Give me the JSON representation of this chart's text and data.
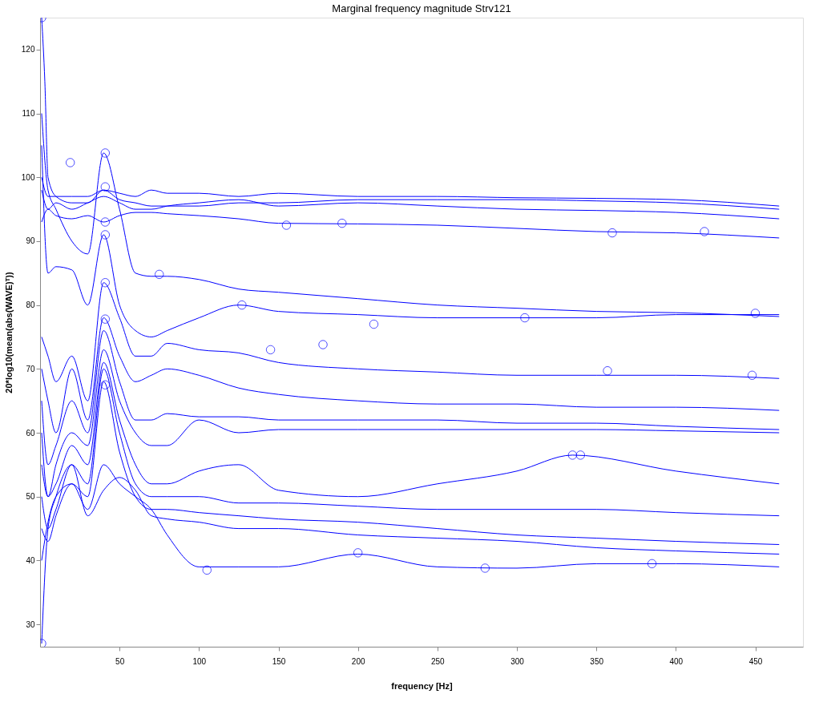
{
  "chart_data": {
    "type": "line",
    "title": "Marginal frequency magnitude Strv121",
    "xlabel": "frequency [Hz]",
    "ylabel": "20*log10(mean(abs(WAVE)ᵀ))",
    "xlim": [
      0,
      480
    ],
    "ylim": [
      26.5,
      125
    ],
    "xticks": [
      50,
      100,
      150,
      200,
      250,
      300,
      350,
      400,
      450
    ],
    "yticks": [
      30,
      40,
      50,
      60,
      70,
      80,
      90,
      100,
      110,
      120
    ],
    "grid": false,
    "legend": false,
    "line_style": "solid",
    "series": [
      {
        "color": "#0000ff",
        "x": [
          1,
          5,
          10,
          20,
          30,
          40,
          50,
          60,
          70,
          80,
          100,
          125,
          150,
          200,
          250,
          300,
          350,
          400,
          465
        ],
        "values": [
          100,
          97,
          97,
          97,
          97,
          98,
          97.5,
          97,
          98,
          97.5,
          97.5,
          97,
          97.5,
          97,
          97,
          96.8,
          96.7,
          96.5,
          95.5
        ]
      },
      {
        "color": "#0000ff",
        "x": [
          1,
          5,
          10,
          20,
          30,
          40,
          50,
          60,
          70,
          80,
          100,
          125,
          150,
          200,
          250,
          300,
          350,
          400,
          465
        ],
        "values": [
          98,
          95,
          96,
          95,
          96,
          97,
          96,
          95,
          95,
          95.5,
          96,
          96.5,
          95.5,
          96,
          95.5,
          95,
          94.8,
          94.5,
          93.5
        ]
      },
      {
        "color": "#0000ff",
        "x": [
          1,
          5,
          10,
          20,
          30,
          40,
          50,
          60,
          70,
          80,
          100,
          125,
          150,
          200,
          250,
          300,
          350,
          400,
          465
        ],
        "values": [
          93,
          95,
          94,
          93.5,
          94,
          93,
          94,
          94.5,
          94.5,
          94.3,
          94,
          93.5,
          92.8,
          92.7,
          92.5,
          92,
          91.5,
          91.3,
          90.5
        ]
      },
      {
        "color": "#0000ff",
        "x": [
          1,
          5,
          10,
          20,
          30,
          40,
          50,
          60,
          70,
          80,
          100,
          125,
          150,
          200,
          250,
          300,
          350,
          400,
          465
        ],
        "values": [
          110,
          98,
          95,
          90,
          88,
          103.8,
          95,
          85,
          84.5,
          84.5,
          84,
          82.5,
          82,
          81,
          80,
          79.5,
          79,
          78.8,
          78.2
        ]
      },
      {
        "color": "#0000ff",
        "x": [
          1,
          5,
          10,
          20,
          30,
          40,
          50,
          60,
          70,
          80,
          100,
          125,
          150,
          200,
          250,
          300,
          350,
          400,
          465
        ],
        "values": [
          105,
          85,
          86,
          85.5,
          80,
          91,
          80,
          76,
          75,
          76,
          78,
          80,
          79,
          78.5,
          78,
          78,
          78,
          78.5,
          78.5
        ]
      },
      {
        "color": "#0000ff",
        "x": [
          1,
          5,
          10,
          20,
          30,
          40,
          50,
          60,
          70,
          80,
          100,
          125,
          150,
          200,
          250,
          300,
          350,
          400,
          465
        ],
        "values": [
          75,
          72,
          68,
          72,
          65,
          83.5,
          78,
          72,
          72,
          74,
          73,
          72.5,
          71,
          70,
          69.5,
          69,
          69,
          69,
          68.5
        ]
      },
      {
        "color": "#0000ff",
        "x": [
          1,
          5,
          10,
          20,
          30,
          40,
          50,
          60,
          70,
          80,
          100,
          125,
          150,
          200,
          250,
          300,
          350,
          400,
          465
        ],
        "values": [
          70,
          65,
          60,
          70,
          62,
          78,
          72,
          68,
          69,
          70,
          69,
          67,
          66,
          65,
          64.5,
          64.5,
          64,
          64,
          63.5
        ]
      },
      {
        "color": "#0000ff",
        "x": [
          1,
          5,
          10,
          20,
          30,
          40,
          50,
          60,
          70,
          80,
          100,
          125,
          150,
          200,
          250,
          300,
          350,
          400,
          465
        ],
        "values": [
          65,
          55,
          58,
          65,
          60,
          76,
          68,
          62,
          62,
          63,
          62.5,
          62.5,
          62,
          62,
          62,
          61.5,
          61.5,
          61,
          60.5
        ]
      },
      {
        "color": "#0000ff",
        "x": [
          1,
          5,
          10,
          20,
          30,
          40,
          50,
          60,
          70,
          80,
          100,
          125,
          150,
          200,
          250,
          300,
          350,
          400,
          465
        ],
        "values": [
          60,
          50,
          55,
          60,
          58,
          73,
          65,
          60,
          58,
          58,
          62,
          60,
          60.5,
          60.5,
          60.5,
          60.5,
          60.5,
          60.3,
          60
        ]
      },
      {
        "color": "#0000ff",
        "x": [
          1,
          5,
          10,
          20,
          30,
          40,
          50,
          60,
          70,
          80,
          100,
          125,
          150,
          200,
          250,
          300,
          335,
          400,
          465
        ],
        "values": [
          55,
          50,
          52,
          58,
          55,
          71,
          62,
          55,
          52,
          52,
          54,
          55,
          51,
          50,
          52,
          54,
          56.5,
          54,
          52
        ]
      },
      {
        "color": "#0000ff",
        "x": [
          1,
          5,
          10,
          20,
          30,
          40,
          50,
          60,
          70,
          80,
          100,
          125,
          150,
          200,
          250,
          300,
          350,
          400,
          465
        ],
        "values": [
          50,
          45,
          48,
          55,
          52,
          70,
          60,
          52,
          50,
          50,
          50,
          49,
          49,
          48.5,
          48,
          48,
          48,
          47.5,
          47
        ]
      },
      {
        "color": "#0000ff",
        "x": [
          1,
          5,
          10,
          20,
          30,
          40,
          50,
          60,
          70,
          80,
          100,
          125,
          150,
          200,
          250,
          300,
          350,
          400,
          465
        ],
        "values": [
          45,
          43,
          47,
          52,
          50,
          68,
          57,
          50,
          48,
          48,
          47.5,
          47,
          46.5,
          46,
          45,
          44,
          43.5,
          43,
          42.5
        ]
      },
      {
        "color": "#0000ff",
        "x": [
          1,
          5,
          10,
          20,
          30,
          40,
          50,
          60,
          70,
          80,
          100,
          125,
          150,
          200,
          250,
          300,
          350,
          400,
          465
        ],
        "values": [
          40,
          46,
          50,
          52,
          48,
          55,
          52,
          50,
          48,
          44,
          39,
          39,
          39,
          41,
          39,
          38.8,
          39.5,
          39.5,
          39
        ]
      },
      {
        "color": "#0000ff",
        "x": [
          1,
          5,
          10,
          20,
          30,
          40,
          50,
          60,
          70,
          80,
          100,
          125,
          150,
          200,
          250,
          300,
          350,
          400,
          465
        ],
        "values": [
          27,
          45,
          50,
          55,
          47,
          51,
          53,
          51,
          47,
          46.5,
          46,
          45,
          45,
          44,
          43.5,
          43,
          42,
          41.5,
          41
        ]
      },
      {
        "color": "#0000ff",
        "x": [
          1,
          3,
          5,
          10,
          20,
          30,
          40,
          50,
          60,
          70,
          80,
          100,
          125,
          150,
          200,
          250,
          300,
          350,
          400,
          465
        ],
        "values": [
          125,
          115,
          100,
          97,
          96,
          96,
          98,
          96.5,
          96,
          95.5,
          95.5,
          95.5,
          96,
          96,
          96.5,
          96.5,
          96.5,
          96.3,
          96,
          95
        ]
      },
      {
        "type": "scatter",
        "marker": "circle",
        "color": "#0000ff",
        "x": [
          1,
          1,
          19,
          41,
          41,
          41,
          41,
          41,
          41,
          41,
          75,
          105,
          127,
          145,
          155,
          178,
          190,
          200,
          210,
          280,
          305,
          335,
          340,
          357,
          360,
          385,
          418,
          448,
          450
        ],
        "values": [
          125,
          27,
          102.3,
          103.8,
          98.5,
          93,
          91,
          83.5,
          77.8,
          67.5,
          84.8,
          38.5,
          80,
          73,
          92.5,
          73.8,
          92.8,
          41.2,
          77,
          38.8,
          78,
          56.5,
          56.5,
          69.7,
          91.3,
          39.5,
          91.5,
          69,
          78.7
        ]
      }
    ]
  }
}
